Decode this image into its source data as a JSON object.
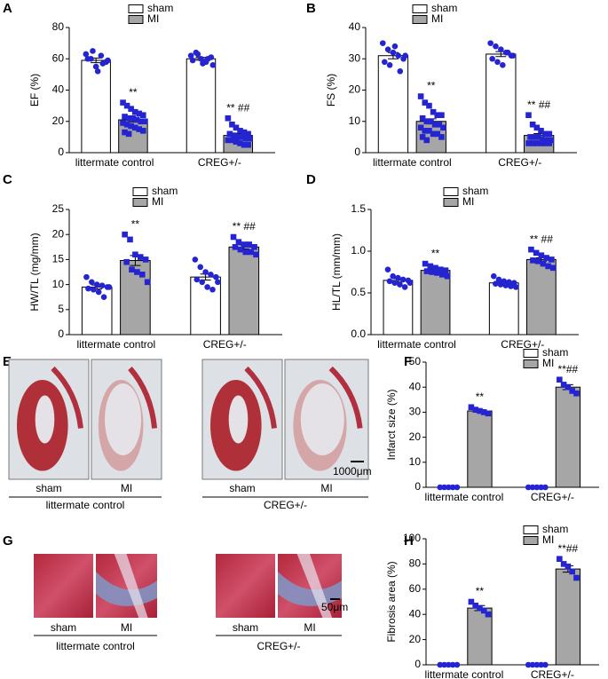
{
  "chart_data": [
    {
      "type": "bar",
      "label": "A",
      "ylabel": "EF (%)",
      "ylim": [
        0,
        80
      ],
      "yticks": [
        0,
        20,
        40,
        60,
        80
      ],
      "categories": [
        "littermate control",
        "CREG+/-"
      ],
      "series": [
        {
          "name": "sham",
          "color": "#ffffff",
          "values": [
            59,
            60
          ],
          "errors": [
            1.5,
            0.9
          ],
          "points": [
            [
              63,
              60,
              55,
              62,
              58,
              60,
              65,
              52,
              57,
              59
            ],
            [
              62,
              64,
              60,
              58,
              61,
              59,
              63,
              57,
              60,
              56
            ]
          ]
        },
        {
          "name": "MI",
          "color": "#a6a6a6",
          "values": [
            21,
            11
          ],
          "errors": [
            1.3,
            1.2
          ],
          "points": [
            [
              32,
              30,
              28,
              26,
              25,
              24,
              23,
              22,
              22,
              21,
              20,
              20,
              19,
              18,
              17,
              16,
              15,
              14,
              13,
              12
            ],
            [
              22,
              18,
              16,
              14,
              13,
              12,
              12,
              11,
              10,
              10,
              9,
              9,
              8,
              8,
              7,
              6,
              5,
              5
            ]
          ],
          "annotations": [
            "**",
            "** ##"
          ]
        }
      ]
    },
    {
      "type": "bar",
      "label": "B",
      "ylabel": "FS (%)",
      "ylim": [
        0,
        40
      ],
      "yticks": [
        0,
        10,
        20,
        30,
        40
      ],
      "categories": [
        "littermate control",
        "CREG+/-"
      ],
      "series": [
        {
          "name": "sham",
          "color": "#ffffff",
          "values": [
            31,
            31.5
          ],
          "errors": [
            1,
            0.8
          ],
          "points": [
            [
              35,
              33,
              32,
              31,
              30,
              29,
              28,
              34,
              26,
              31
            ],
            [
              35,
              34,
              33,
              32,
              31,
              30,
              29,
              28,
              32,
              31
            ]
          ]
        },
        {
          "name": "MI",
          "color": "#a6a6a6",
          "values": [
            10,
            5.5
          ],
          "errors": [
            0.8,
            0.6
          ],
          "points": [
            [
              18,
              16,
              15,
              13,
              12,
              12,
              11,
              10,
              10,
              9,
              9,
              8,
              8,
              7,
              7,
              6,
              6,
              5,
              5,
              4
            ],
            [
              12,
              9,
              8,
              7,
              6,
              6,
              5,
              5,
              5,
              4,
              4,
              4,
              3,
              3,
              3,
              3,
              3,
              3
            ]
          ],
          "annotations": [
            "**",
            "** ##"
          ]
        }
      ]
    },
    {
      "type": "bar",
      "label": "C",
      "ylabel": "HW/TL (mg/mm)",
      "ylim": [
        0,
        25
      ],
      "yticks": [
        0,
        5,
        10,
        15,
        20,
        25
      ],
      "categories": [
        "littermate control",
        "CREG+/-"
      ],
      "series": [
        {
          "name": "sham",
          "color": "#ffffff",
          "values": [
            9.5,
            11.5
          ],
          "errors": [
            0.4,
            0.6
          ],
          "points": [
            [
              11.5,
              10.5,
              10,
              9.8,
              9.5,
              9.2,
              9,
              8.5,
              7.5,
              9.5
            ],
            [
              15,
              13.5,
              12.5,
              12,
              11.5,
              11,
              10.5,
              9.5,
              9,
              10.5
            ]
          ]
        },
        {
          "name": "MI",
          "color": "#a6a6a6",
          "values": [
            14.8,
            17.5
          ],
          "errors": [
            1,
            0.4
          ],
          "points": [
            [
              20,
              19,
              16,
              15.5,
              15,
              14.5,
              13,
              12.5,
              12,
              10.5
            ],
            [
              19.5,
              18.5,
              18,
              18,
              17.5,
              17.5,
              17,
              16.5,
              16.5,
              16
            ]
          ],
          "annotations": [
            "**",
            "** ##"
          ]
        }
      ]
    },
    {
      "type": "bar",
      "label": "D",
      "ylabel": "HL/TL (mm/mm)",
      "ylim": [
        0,
        1.5
      ],
      "yticks": [
        {
          "value": 0,
          "label": "0.0"
        },
        0.5,
        {
          "value": 1,
          "label": "1.0"
        },
        1.5
      ],
      "categories": [
        "littermate control",
        "CREG+/-"
      ],
      "series": [
        {
          "name": "sham",
          "color": "#ffffff",
          "values": [
            0.65,
            0.62
          ],
          "errors": [
            0.02,
            0.015
          ],
          "points": [
            [
              0.78,
              0.7,
              0.68,
              0.66,
              0.65,
              0.64,
              0.62,
              0.6,
              0.57,
              0.62
            ],
            [
              0.7,
              0.66,
              0.64,
              0.63,
              0.62,
              0.61,
              0.6,
              0.59,
              0.58,
              0.57
            ]
          ]
        },
        {
          "name": "MI",
          "color": "#a6a6a6",
          "values": [
            0.77,
            0.9
          ],
          "errors": [
            0.015,
            0.02
          ],
          "points": [
            [
              0.85,
              0.82,
              0.8,
              0.78,
              0.77,
              0.76,
              0.75,
              0.74,
              0.72,
              0.7
            ],
            [
              1.02,
              0.98,
              0.95,
              0.92,
              0.9,
              0.89,
              0.88,
              0.85,
              0.82,
              0.8
            ]
          ],
          "annotations": [
            "**",
            "** ##"
          ]
        }
      ]
    },
    {
      "type": "bar",
      "label": "F",
      "ylabel": "Infarct size (%)",
      "ylim": [
        0,
        50
      ],
      "yticks": [
        0,
        10,
        20,
        30,
        40,
        50
      ],
      "categories": [
        "littermate control",
        "CREG+/-"
      ],
      "series": [
        {
          "name": "sham",
          "color": "#ffffff",
          "values": [
            0,
            0
          ],
          "errors": [
            0,
            0
          ],
          "points": [
            [
              0,
              0,
              0,
              0,
              0
            ],
            [
              0,
              0,
              0,
              0,
              0
            ]
          ]
        },
        {
          "name": "MI",
          "color": "#a6a6a6",
          "values": [
            30.5,
            40
          ],
          "errors": [
            0.5,
            1
          ],
          "points": [
            [
              32,
              31,
              30.5,
              30,
              29.5
            ],
            [
              43,
              41,
              40,
              38.5,
              37.5
            ]
          ],
          "annotations": [
            "**",
            "**##"
          ]
        }
      ]
    },
    {
      "type": "bar",
      "label": "H",
      "ylabel": "Fibrosis area (%)",
      "ylim": [
        0,
        100
      ],
      "yticks": [
        0,
        20,
        40,
        60,
        80,
        100
      ],
      "categories": [
        "littermate control",
        "CREG+/-"
      ],
      "series": [
        {
          "name": "sham",
          "color": "#ffffff",
          "values": [
            0,
            0
          ],
          "errors": [
            0,
            0
          ],
          "points": [
            [
              0,
              0,
              0,
              0,
              0
            ],
            [
              0,
              0,
              0,
              0,
              0
            ]
          ]
        },
        {
          "name": "MI",
          "color": "#a6a6a6",
          "values": [
            45,
            76
          ],
          "errors": [
            2,
            2.5
          ],
          "points": [
            [
              50,
              47,
              45,
              43,
              40
            ],
            [
              84,
              80,
              78,
              74,
              69
            ]
          ],
          "annotations": [
            "**",
            "**##"
          ]
        }
      ]
    }
  ],
  "image_panels": [
    {
      "label": "E",
      "captions": [
        "sham",
        "MI",
        "sham",
        "MI"
      ],
      "groups": [
        "littermate control",
        "CREG+/-"
      ],
      "scale_bar": "1000μm"
    },
    {
      "label": "G",
      "captions": [
        "sham",
        "MI",
        "sham",
        "MI"
      ],
      "groups": [
        "littermate control",
        "CREG+/-"
      ],
      "scale_bar": "50μm"
    }
  ]
}
